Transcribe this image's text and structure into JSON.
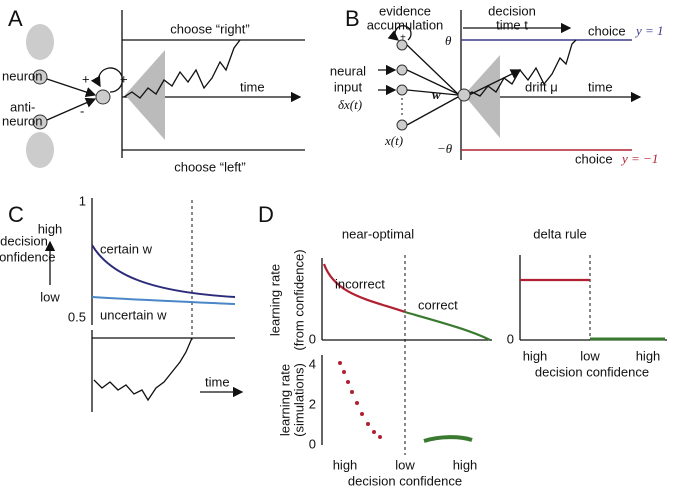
{
  "panels": [
    {
      "label": "A",
      "texts": [
        "choose “right”",
        "time",
        "choose “left”",
        "neuron",
        "anti-",
        "neuron",
        "+",
        "+",
        "-"
      ]
    },
    {
      "label": "B",
      "texts": [
        "evidence",
        "accumulation",
        "decision",
        "time t",
        "neural",
        "input",
        "δx(t)",
        "x(t)",
        "w",
        "drift μ",
        "time",
        "θ",
        "−θ",
        "choice",
        "y = 1",
        "choice",
        "y = −1",
        "+"
      ]
    },
    {
      "label": "C",
      "ylabel": [
        "decision",
        "confidence"
      ],
      "ylabel2": [
        "low",
        "high"
      ],
      "yticks": [
        "1",
        "0.5"
      ],
      "series": [
        "certain w",
        "uncertain w"
      ],
      "xlabel": "time"
    },
    {
      "label": "D",
      "titles": [
        "near-optimal",
        "delta rule"
      ],
      "annotations": [
        "incorrect",
        "correct"
      ],
      "ylabels": [
        [
          "learning rate",
          "(from confidence)"
        ],
        [
          "learning rate",
          "(simulations)"
        ]
      ],
      "yticks_top": [
        "0"
      ],
      "yticks_bottom": [
        "4",
        "2",
        "0"
      ],
      "yticks_delta": [
        "0"
      ],
      "xticks": [
        "high",
        "low",
        "high"
      ],
      "xlabel": "decision confidence"
    }
  ]
}
